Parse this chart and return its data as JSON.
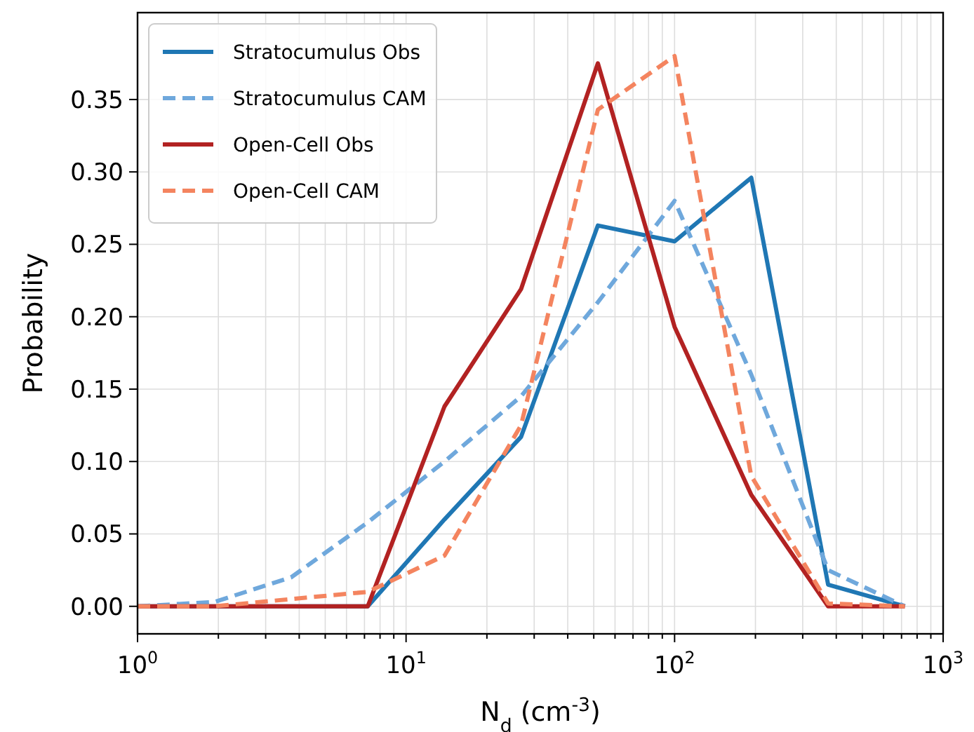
{
  "chart_data": {
    "type": "line",
    "xlabel": "N$_{d}$ (cm$^{-3}$)",
    "ylabel": "Probability",
    "x": [
      1,
      1.93,
      3.73,
      7.2,
      13.9,
      26.8,
      51.8,
      100,
      193,
      373,
      720
    ],
    "series": [
      {
        "name": "Stratocumulus Obs",
        "color": "#1f77b4",
        "line_style": "solid",
        "values": [
          0,
          0,
          0,
          0,
          0.06,
          0.117,
          0.263,
          0.252,
          0.296,
          0.015,
          0
        ]
      },
      {
        "name": "Stratocumulus CAM",
        "color": "#6fa8dc",
        "line_style": "dashed",
        "values": [
          0,
          0.003,
          0.02,
          0.058,
          0.1,
          0.145,
          0.21,
          0.28,
          0.16,
          0.025,
          0
        ]
      },
      {
        "name": "Open-Cell Obs",
        "color": "#b22222",
        "line_style": "solid",
        "values": [
          0,
          0,
          0,
          0,
          0.138,
          0.219,
          0.375,
          0.193,
          0.077,
          0,
          0
        ]
      },
      {
        "name": "Open-Cell CAM",
        "color": "#f4845f",
        "line_style": "dashed",
        "values": [
          0,
          0,
          0.005,
          0.01,
          0.035,
          0.125,
          0.343,
          0.38,
          0.09,
          0.002,
          0
        ]
      }
    ],
    "log": "x",
    "grid": true,
    "legend": "top left",
    "xlim": [
      1,
      1000
    ],
    "ylim": [
      -0.019,
      0.41
    ],
    "xticks": [
      {
        "value": 1,
        "label": "10$^{0}$"
      },
      {
        "value": 2,
        "label": null
      },
      {
        "value": 3,
        "label": null
      },
      {
        "value": 4,
        "label": null
      },
      {
        "value": 5,
        "label": null
      },
      {
        "value": 6,
        "label": null
      },
      {
        "value": 7,
        "label": null
      },
      {
        "value": 8,
        "label": null
      },
      {
        "value": 9,
        "label": null
      },
      {
        "value": 10,
        "label": "10$^{1}$"
      },
      {
        "value": 20,
        "label": null
      },
      {
        "value": 30,
        "label": null
      },
      {
        "value": 40,
        "label": null
      },
      {
        "value": 50,
        "label": null
      },
      {
        "value": 60,
        "label": null
      },
      {
        "value": 70,
        "label": null
      },
      {
        "value": 80,
        "label": null
      },
      {
        "value": 90,
        "label": null
      },
      {
        "value": 100,
        "label": "10$^{2}$"
      },
      {
        "value": 200,
        "label": null
      },
      {
        "value": 300,
        "label": null
      },
      {
        "value": 400,
        "label": null
      },
      {
        "value": 500,
        "label": null
      },
      {
        "value": 600,
        "label": null
      },
      {
        "value": 700,
        "label": null
      },
      {
        "value": 800,
        "label": null
      },
      {
        "value": 900,
        "label": null
      },
      {
        "value": 1000,
        "label": "10$^{3}$"
      }
    ],
    "yticks": [
      {
        "value": 0,
        "label": "0.00"
      },
      {
        "value": 0.05,
        "label": "0.05"
      },
      {
        "value": 0.1,
        "label": "0.10"
      },
      {
        "value": 0.15,
        "label": "0.15"
      },
      {
        "value": 0.2,
        "label": "0.20"
      },
      {
        "value": 0.25,
        "label": "0.25"
      },
      {
        "value": 0.3,
        "label": "0.30"
      },
      {
        "value": 0.35,
        "label": "0.35"
      }
    ]
  }
}
